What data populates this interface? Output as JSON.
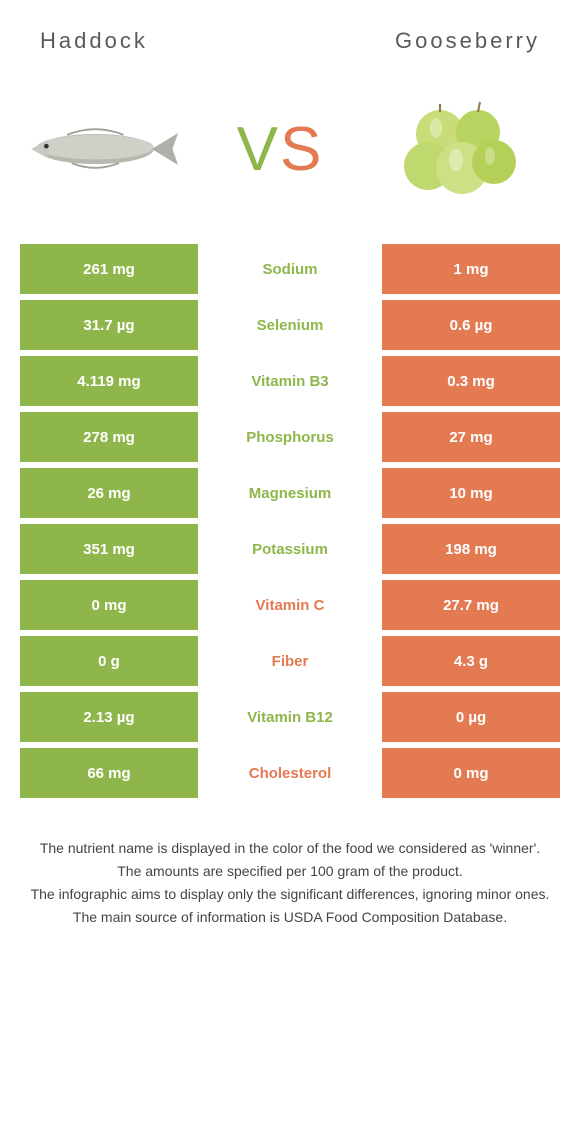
{
  "header": {
    "left": "Haddock",
    "right": "Gooseberry"
  },
  "vs": {
    "v": "V",
    "s": "S"
  },
  "colors": {
    "green": "#8fb64a",
    "orange": "#e37a52",
    "white": "#ffffff",
    "text": "#333333"
  },
  "rows": [
    {
      "left": "261 mg",
      "label": "Sodium",
      "right": "1 mg",
      "winner": "left"
    },
    {
      "left": "31.7 µg",
      "label": "Selenium",
      "right": "0.6 µg",
      "winner": "left"
    },
    {
      "left": "4.119 mg",
      "label": "Vitamin B3",
      "right": "0.3 mg",
      "winner": "left"
    },
    {
      "left": "278 mg",
      "label": "Phosphorus",
      "right": "27 mg",
      "winner": "left"
    },
    {
      "left": "26 mg",
      "label": "Magnesium",
      "right": "10 mg",
      "winner": "left"
    },
    {
      "left": "351 mg",
      "label": "Potassium",
      "right": "198 mg",
      "winner": "left"
    },
    {
      "left": "0 mg",
      "label": "Vitamin C",
      "right": "27.7 mg",
      "winner": "right"
    },
    {
      "left": "0 g",
      "label": "Fiber",
      "right": "4.3 g",
      "winner": "right"
    },
    {
      "left": "2.13 µg",
      "label": "Vitamin B12",
      "right": "0 µg",
      "winner": "left"
    },
    {
      "left": "66 mg",
      "label": "Cholesterol",
      "right": "0 mg",
      "winner": "right"
    }
  ],
  "footer": {
    "line1": "The nutrient name is displayed in the color of the food we considered as 'winner'.",
    "line2": "The amounts are specified per 100 gram of the product.",
    "line3": "The infographic aims to display only the significant differences, ignoring minor ones.",
    "line4": "The main source of information is USDA Food Composition Database."
  }
}
